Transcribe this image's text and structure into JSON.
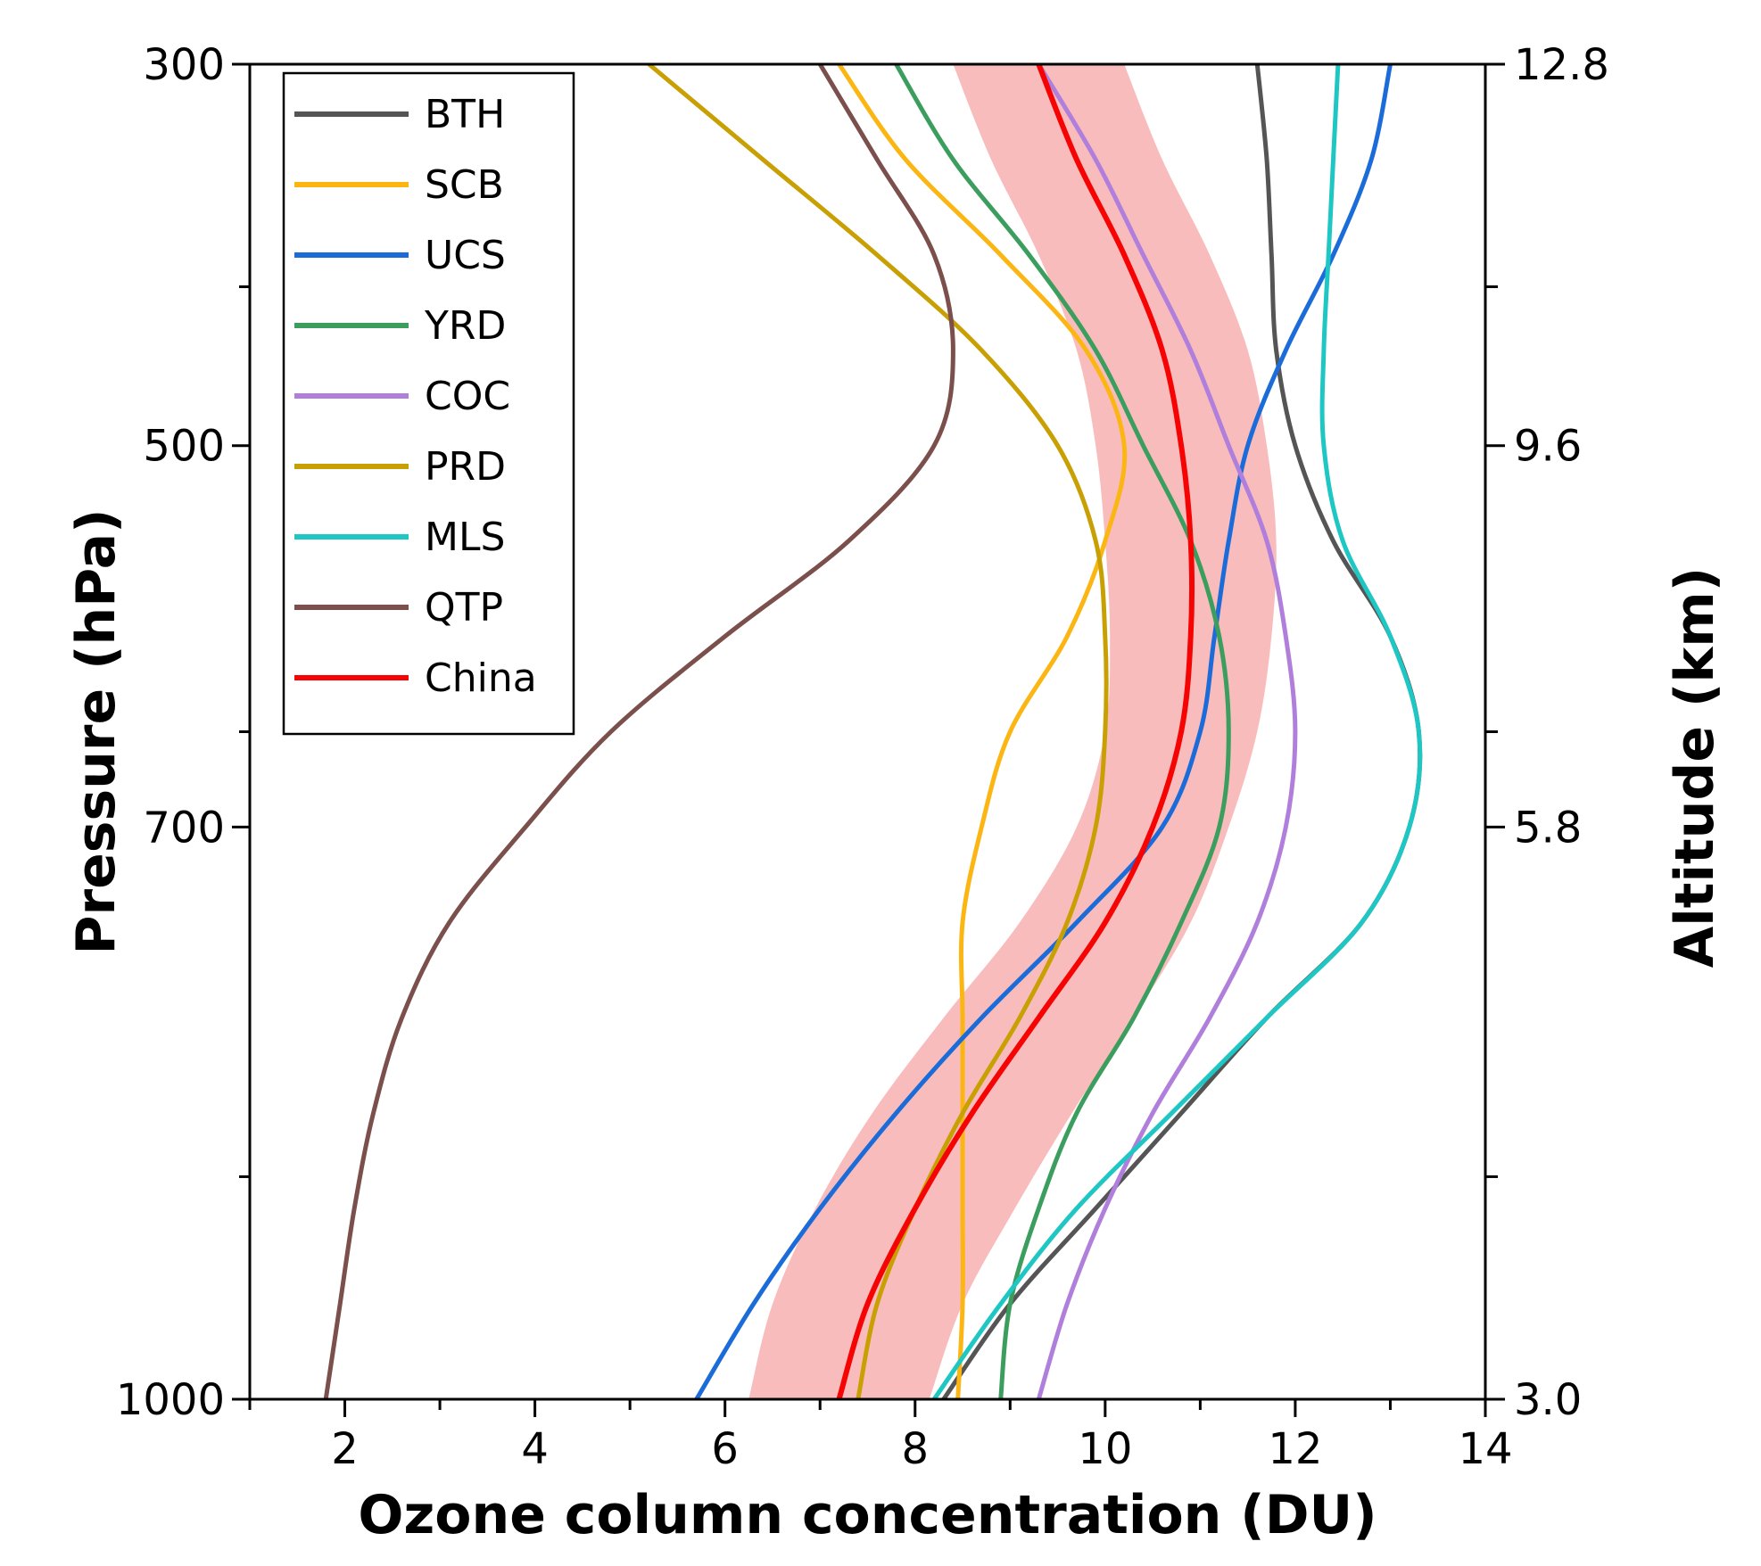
{
  "chart_data": {
    "type": "line",
    "xlabel": "Ozone column concentration (DU)",
    "ylabel": "Pressure (hPa)",
    "y2label": "Altitude (km)",
    "xlim": [
      1,
      14
    ],
    "xticks": [
      2,
      4,
      6,
      8,
      10,
      12,
      14
    ],
    "ylim": [
      300,
      1000
    ],
    "yticks": [
      300,
      500,
      700,
      1000
    ],
    "y2ticks": [
      "12.8",
      "9.6",
      "5.8",
      "3.0"
    ],
    "legend_position": "top-left",
    "grid": false,
    "y_values": [
      300,
      350,
      400,
      450,
      500,
      550,
      600,
      650,
      700,
      750,
      800,
      850,
      900,
      950,
      1000
    ],
    "series": [
      {
        "name": "BTH",
        "color": "#555555",
        "x": [
          11.6,
          11.7,
          11.75,
          11.8,
          12.0,
          12.4,
          13.0,
          13.3,
          13.2,
          12.7,
          11.7,
          10.8,
          9.9,
          9.0,
          8.3
        ]
      },
      {
        "name": "SCB",
        "color": "#FBB614",
        "x": [
          7.2,
          7.9,
          8.9,
          9.8,
          10.2,
          10.0,
          9.6,
          9.0,
          8.7,
          8.5,
          8.5,
          8.5,
          8.5,
          8.5,
          8.45
        ]
      },
      {
        "name": "UCS",
        "color": "#1B6CD9",
        "x": [
          13.0,
          12.8,
          12.4,
          11.9,
          11.5,
          11.3,
          11.15,
          11.0,
          10.6,
          9.7,
          8.7,
          7.8,
          7.0,
          6.3,
          5.7
        ]
      },
      {
        "name": "YRD",
        "color": "#3C9E5E",
        "x": [
          7.8,
          8.4,
          9.2,
          9.9,
          10.4,
          10.9,
          11.2,
          11.3,
          11.2,
          10.8,
          10.3,
          9.7,
          9.3,
          9.0,
          8.9
        ]
      },
      {
        "name": "COC",
        "color": "#B07FDC",
        "x": [
          9.3,
          9.9,
          10.4,
          10.9,
          11.3,
          11.7,
          11.9,
          12.0,
          11.9,
          11.6,
          11.1,
          10.5,
          10.0,
          9.6,
          9.3
        ]
      },
      {
        "name": "PRD",
        "color": "#C9A004",
        "x": [
          5.2,
          6.4,
          7.6,
          8.7,
          9.5,
          9.9,
          10.0,
          10.0,
          9.9,
          9.6,
          9.1,
          8.5,
          8.0,
          7.6,
          7.4
        ]
      },
      {
        "name": "MLS",
        "color": "#1EC7C3",
        "x": [
          12.45,
          12.4,
          12.35,
          12.3,
          12.3,
          12.5,
          13.0,
          13.3,
          13.2,
          12.7,
          11.7,
          10.7,
          9.7,
          8.9,
          8.2
        ]
      },
      {
        "name": "QTP",
        "color": "#7B4F4B",
        "x": [
          7.0,
          7.6,
          8.2,
          8.4,
          8.2,
          7.3,
          6.0,
          4.8,
          3.9,
          3.1,
          2.6,
          2.3,
          2.1,
          1.95,
          1.8
        ]
      },
      {
        "name": "China",
        "color": "#F60404",
        "x": [
          9.3,
          9.7,
          10.2,
          10.6,
          10.8,
          10.9,
          10.9,
          10.8,
          10.5,
          10.0,
          9.3,
          8.6,
          8.0,
          7.5,
          7.2
        ]
      }
    ],
    "band": {
      "color": "#F9BCBC",
      "around": "China",
      "half_width": [
        0.9,
        0.9,
        0.9,
        0.9,
        0.9,
        0.9,
        0.85,
        0.8,
        0.8,
        0.9,
        1.0,
        1.05,
        1.05,
        1.0,
        0.95
      ]
    }
  }
}
